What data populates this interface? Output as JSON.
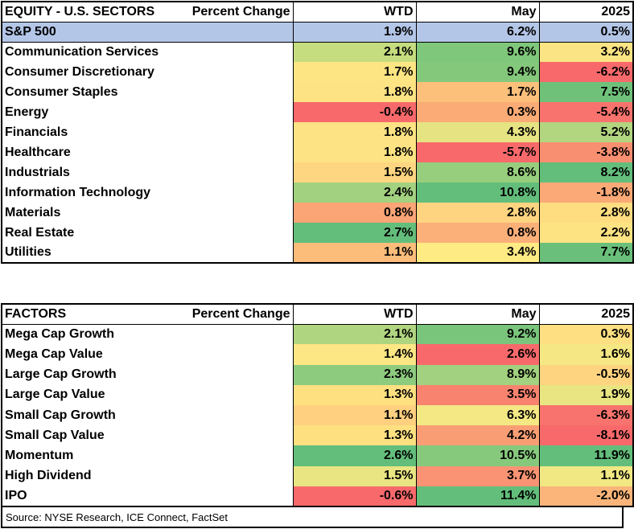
{
  "sectors": {
    "title": "EQUITY - U.S. SECTORS",
    "subtitle": "Percent Change",
    "columns": [
      "WTD",
      "May",
      "2025"
    ],
    "benchmark": {
      "name": "S&P 500",
      "values": [
        "1.9%",
        "6.2%",
        "0.5%"
      ]
    },
    "rows": [
      {
        "name": "Communication Services",
        "values": [
          "2.1%",
          "9.6%",
          "3.2%"
        ]
      },
      {
        "name": "Consumer Discretionary",
        "values": [
          "1.7%",
          "9.4%",
          "-6.2%"
        ]
      },
      {
        "name": "Consumer Staples",
        "values": [
          "1.8%",
          "1.7%",
          "7.5%"
        ]
      },
      {
        "name": "Energy",
        "values": [
          "-0.4%",
          "0.3%",
          "-5.4%"
        ]
      },
      {
        "name": "Financials",
        "values": [
          "1.8%",
          "4.3%",
          "5.2%"
        ]
      },
      {
        "name": "Healthcare",
        "values": [
          "1.8%",
          "-5.7%",
          "-3.8%"
        ]
      },
      {
        "name": "Industrials",
        "values": [
          "1.5%",
          "8.6%",
          "8.2%"
        ]
      },
      {
        "name": "Information Technology",
        "values": [
          "2.4%",
          "10.8%",
          "-1.8%"
        ]
      },
      {
        "name": "Materials",
        "values": [
          "0.8%",
          "2.8%",
          "2.8%"
        ]
      },
      {
        "name": "Real Estate",
        "values": [
          "2.7%",
          "0.8%",
          "2.2%"
        ]
      },
      {
        "name": "Utilities",
        "values": [
          "1.1%",
          "3.4%",
          "7.7%"
        ]
      }
    ]
  },
  "factors": {
    "title": "FACTORS",
    "subtitle": "Percent Change",
    "columns": [
      "WTD",
      "May",
      "2025"
    ],
    "rows": [
      {
        "name": "Mega Cap Growth",
        "values": [
          "2.1%",
          "9.2%",
          "0.3%"
        ]
      },
      {
        "name": "Mega Cap Value",
        "values": [
          "1.4%",
          "2.6%",
          "1.6%"
        ]
      },
      {
        "name": "Large Cap Growth",
        "values": [
          "2.3%",
          "8.9%",
          "-0.5%"
        ]
      },
      {
        "name": "Large Cap Value",
        "values": [
          "1.3%",
          "3.5%",
          "1.9%"
        ]
      },
      {
        "name": "Small Cap Growth",
        "values": [
          "1.1%",
          "6.3%",
          "-6.3%"
        ]
      },
      {
        "name": "Small Cap Value",
        "values": [
          "1.3%",
          "4.2%",
          "-8.1%"
        ]
      },
      {
        "name": "Momentum",
        "values": [
          "2.6%",
          "10.5%",
          "11.9%"
        ]
      },
      {
        "name": "High Dividend",
        "values": [
          "1.5%",
          "3.7%",
          "1.1%"
        ]
      },
      {
        "name": "IPO",
        "values": [
          "-0.6%",
          "11.4%",
          "-2.0%"
        ]
      }
    ]
  },
  "source": "Source: NYSE Research, ICE Connect, FactSet",
  "heat_colors": {
    "sectors": [
      [
        "#c5dc7f",
        "#7fc77a",
        "#fbe483"
      ],
      [
        "#fee583",
        "#84c87b",
        "#f8696b"
      ],
      [
        "#fde383",
        "#fcc07b",
        "#6fc17a"
      ],
      [
        "#f8696b",
        "#fbab76",
        "#f8736d"
      ],
      [
        "#fde383",
        "#e6e383",
        "#b2d580"
      ],
      [
        "#fde383",
        "#f8696b",
        "#f98f71"
      ],
      [
        "#fed580",
        "#97ce7e",
        "#63be7b"
      ],
      [
        "#a2d17f",
        "#63be7b",
        "#fba977"
      ],
      [
        "#fba476",
        "#fed480",
        "#fedd81"
      ],
      [
        "#63be7b",
        "#fbb079",
        "#fee383"
      ],
      [
        "#fcbd7b",
        "#ffeb84",
        "#6ac07b"
      ]
    ],
    "factors": [
      [
        "#b0d580",
        "#7ac57c",
        "#fedf82"
      ],
      [
        "#fde684",
        "#f8696b",
        "#f5e884"
      ],
      [
        "#8dcb7e",
        "#a2d17f",
        "#fed480"
      ],
      [
        "#fee081",
        "#f8836f",
        "#e9e583"
      ],
      [
        "#fed07f",
        "#f3e884",
        "#f8736d"
      ],
      [
        "#fee081",
        "#f99e74",
        "#f8696b"
      ],
      [
        "#63be7b",
        "#86c97d",
        "#63be7b"
      ],
      [
        "#e9e583",
        "#fa9373",
        "#f1e884"
      ],
      [
        "#f8696b",
        "#63be7b",
        "#fbb57a"
      ]
    ]
  }
}
